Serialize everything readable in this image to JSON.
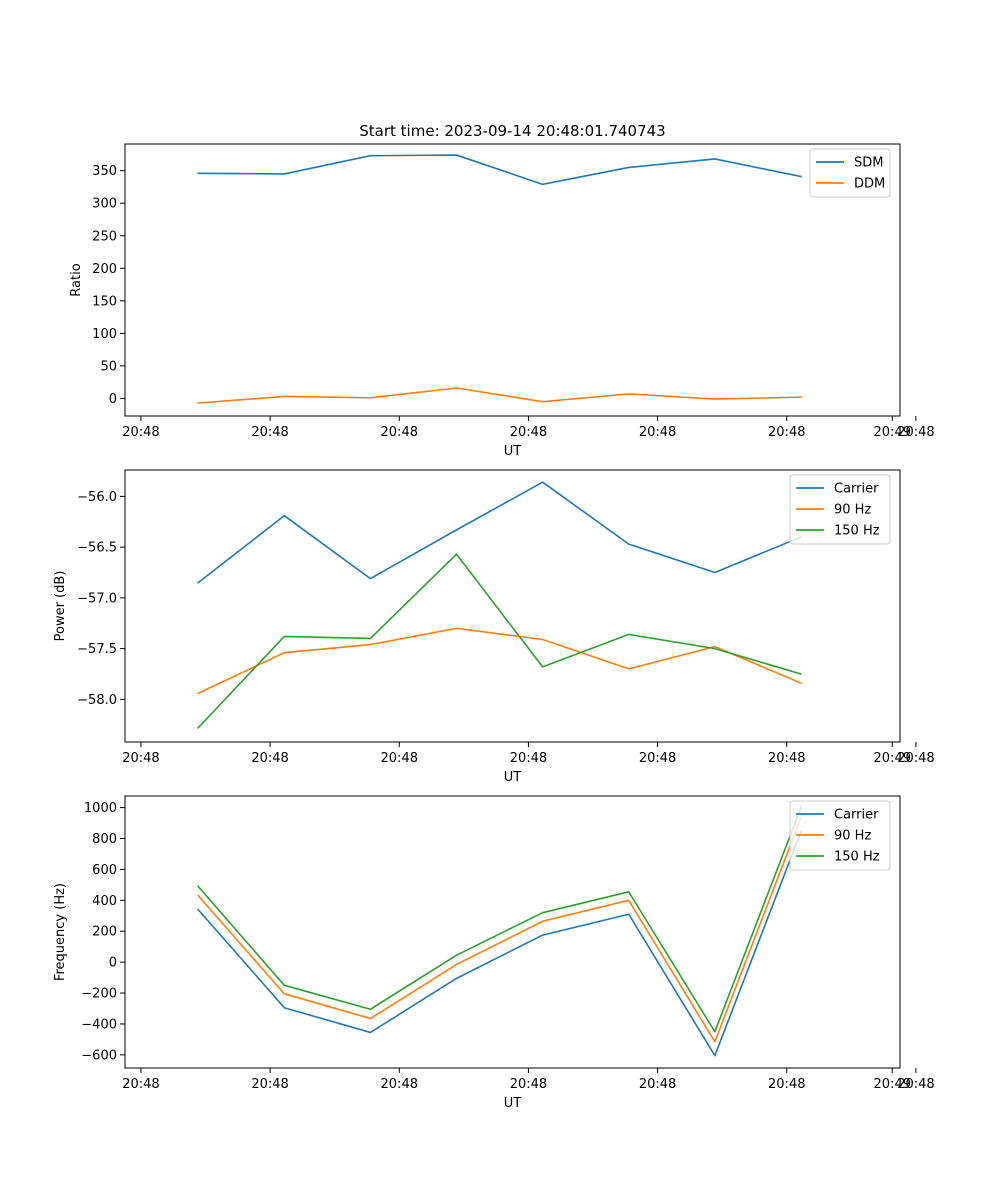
{
  "figure_title": "Start time: 2023-09-14 20:48:01.740743",
  "colors": {
    "blue": "#1f77b4",
    "orange": "#ff7f0e",
    "green": "#2ca02c"
  },
  "chart_data": [
    {
      "type": "line",
      "title": "Start time: 2023-09-14 20:48:01.740743",
      "xlabel": "UT",
      "ylabel": "Ratio",
      "x_tick_labels": [
        "20:48",
        "20:48",
        "20:48",
        "20:48",
        "20:48",
        "20:48",
        "20:48"
      ],
      "x_end_tick_label": "20:49",
      "x": [
        1,
        2,
        3,
        4,
        5,
        6,
        7,
        8
      ],
      "xlim": [
        0.15,
        9.15
      ],
      "ylim": [
        -27,
        391
      ],
      "yticks": [
        0,
        50,
        100,
        150,
        200,
        250,
        300,
        350
      ],
      "ytick_labels": [
        "0",
        "50",
        "100",
        "150",
        "200",
        "250",
        "300",
        "350"
      ],
      "legend": "top-right",
      "series": [
        {
          "name": "SDM",
          "color": "#1f77b4",
          "values": [
            346,
            345,
            373,
            374,
            329,
            355,
            368,
            341
          ]
        },
        {
          "name": "DDM",
          "color": "#ff7f0e",
          "values": [
            -7,
            3,
            1,
            16,
            -5,
            7,
            -1,
            2
          ]
        }
      ]
    },
    {
      "type": "line",
      "xlabel": "UT",
      "ylabel": "Power (dB)",
      "x_tick_labels": [
        "20:48",
        "20:48",
        "20:48",
        "20:48",
        "20:48",
        "20:48",
        "20:48"
      ],
      "x_end_tick_label": "20:49",
      "x": [
        1,
        2,
        3,
        4,
        5,
        6,
        7,
        8
      ],
      "xlim": [
        0.15,
        9.15
      ],
      "ylim": [
        -58.42,
        -55.74
      ],
      "yticks": [
        -58.0,
        -57.5,
        -57.0,
        -56.5,
        -56.0
      ],
      "ytick_labels": [
        "−58.0",
        "−57.5",
        "−57.0",
        "−56.5",
        "−56.0"
      ],
      "legend": "top-right",
      "series": [
        {
          "name": "Carrier",
          "color": "#1f77b4",
          "values": [
            -56.85,
            -56.19,
            -56.81,
            -56.33,
            -55.86,
            -56.47,
            -56.75,
            -56.4
          ]
        },
        {
          "name": "90 Hz",
          "color": "#ff7f0e",
          "values": [
            -57.94,
            -57.54,
            -57.46,
            -57.3,
            -57.41,
            -57.7,
            -57.48,
            -57.84
          ]
        },
        {
          "name": "150 Hz",
          "color": "#2ca02c",
          "values": [
            -58.28,
            -57.38,
            -57.4,
            -56.57,
            -57.68,
            -57.36,
            -57.5,
            -57.75
          ]
        }
      ]
    },
    {
      "type": "line",
      "xlabel": "UT",
      "ylabel": "Frequency (Hz)",
      "x_tick_labels": [
        "20:48",
        "20:48",
        "20:48",
        "20:48",
        "20:48",
        "20:48",
        "20:48"
      ],
      "x_end_tick_label": "20:49",
      "x": [
        1,
        2,
        3,
        4,
        5,
        6,
        7,
        8
      ],
      "xlim": [
        0.15,
        9.15
      ],
      "ylim": [
        -685,
        1075
      ],
      "yticks": [
        -600,
        -400,
        -200,
        0,
        200,
        400,
        600,
        800,
        1000
      ],
      "ytick_labels": [
        "−600",
        "−400",
        "−200",
        "0",
        "200",
        "400",
        "600",
        "800",
        "1000"
      ],
      "legend": "top-right",
      "series": [
        {
          "name": "Carrier",
          "color": "#1f77b4",
          "values": [
            340,
            -295,
            -455,
            -105,
            175,
            310,
            -605,
            845
          ]
        },
        {
          "name": "90 Hz",
          "color": "#ff7f0e",
          "values": [
            430,
            -205,
            -365,
            -15,
            265,
            400,
            -515,
            935
          ]
        },
        {
          "name": "150 Hz",
          "color": "#2ca02c",
          "values": [
            490,
            -150,
            -305,
            45,
            320,
            455,
            -450,
            1000
          ]
        }
      ]
    }
  ]
}
